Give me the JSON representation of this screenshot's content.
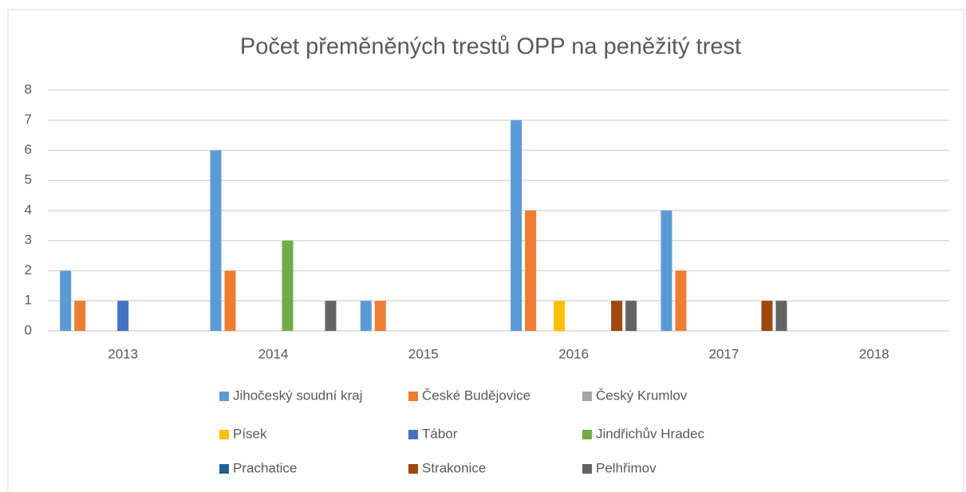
{
  "chart_data": {
    "type": "bar",
    "title": "Počet přeměněných trestů OPP na peněžitý trest",
    "categories": [
      "2013",
      "2014",
      "2015",
      "2016",
      "2017",
      "2018"
    ],
    "series": [
      {
        "name": "Jihočeský soudní kraj",
        "color": "#5b9bd5",
        "values": [
          2,
          6,
          1,
          7,
          4,
          0
        ]
      },
      {
        "name": "České Budějovice",
        "color": "#ed7d31",
        "values": [
          1,
          2,
          1,
          4,
          2,
          0
        ]
      },
      {
        "name": "Český Krumlov",
        "color": "#a5a5a5",
        "values": [
          0,
          0,
          0,
          0,
          0,
          0
        ]
      },
      {
        "name": "Písek",
        "color": "#ffc000",
        "values": [
          0,
          0,
          0,
          1,
          0,
          0
        ]
      },
      {
        "name": "Tábor",
        "color": "#4472c4",
        "values": [
          1,
          0,
          0,
          0,
          0,
          0
        ]
      },
      {
        "name": "Jindřichův Hradec",
        "color": "#70ad47",
        "values": [
          0,
          3,
          0,
          0,
          0,
          0
        ]
      },
      {
        "name": "Prachatice",
        "color": "#255e91",
        "values": [
          0,
          0,
          0,
          0,
          0,
          0
        ]
      },
      {
        "name": "Strakonice",
        "color": "#9e480e",
        "values": [
          0,
          0,
          0,
          1,
          1,
          0
        ]
      },
      {
        "name": "Pelhřimov",
        "color": "#636363",
        "values": [
          0,
          1,
          0,
          1,
          1,
          0
        ]
      }
    ],
    "ylim": [
      0,
      8
    ],
    "yticks": [
      0,
      1,
      2,
      3,
      4,
      5,
      6,
      7,
      8
    ],
    "grid": true,
    "legend": "bottom"
  }
}
